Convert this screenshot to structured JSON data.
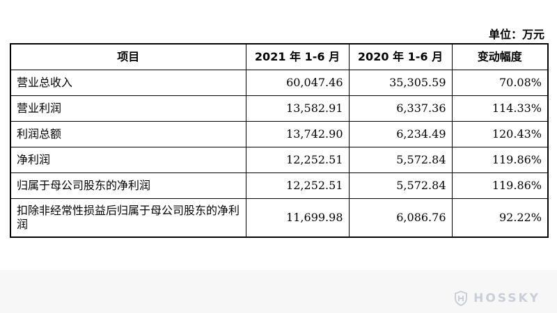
{
  "unit_label": "单位：万元",
  "table": {
    "headers": [
      "项目",
      "2021 年 1-6 月",
      "2020 年 1-6 月",
      "变动幅度"
    ],
    "rows": [
      {
        "item": "营业总收入",
        "y2021": "60,047.46",
        "y2020": "35,305.59",
        "change": "70.08%"
      },
      {
        "item": "营业利润",
        "y2021": "13,582.91",
        "y2020": "6,337.36",
        "change": "114.33%"
      },
      {
        "item": "利润总额",
        "y2021": "13,742.90",
        "y2020": "6,234.49",
        "change": "120.43%"
      },
      {
        "item": "净利润",
        "y2021": "12,252.51",
        "y2020": "5,572.84",
        "change": "119.86%"
      },
      {
        "item": "归属于母公司股东的净利润",
        "y2021": "12,252.51",
        "y2020": "5,572.84",
        "change": "119.86%"
      },
      {
        "item": "扣除非经常性损益后归属于母公司股东的净利润",
        "y2021": "11,699.98",
        "y2020": "6,086.76",
        "change": "92.22%"
      }
    ]
  },
  "watermark": {
    "text": "HOSSKY",
    "color": "#c9cfd8"
  }
}
